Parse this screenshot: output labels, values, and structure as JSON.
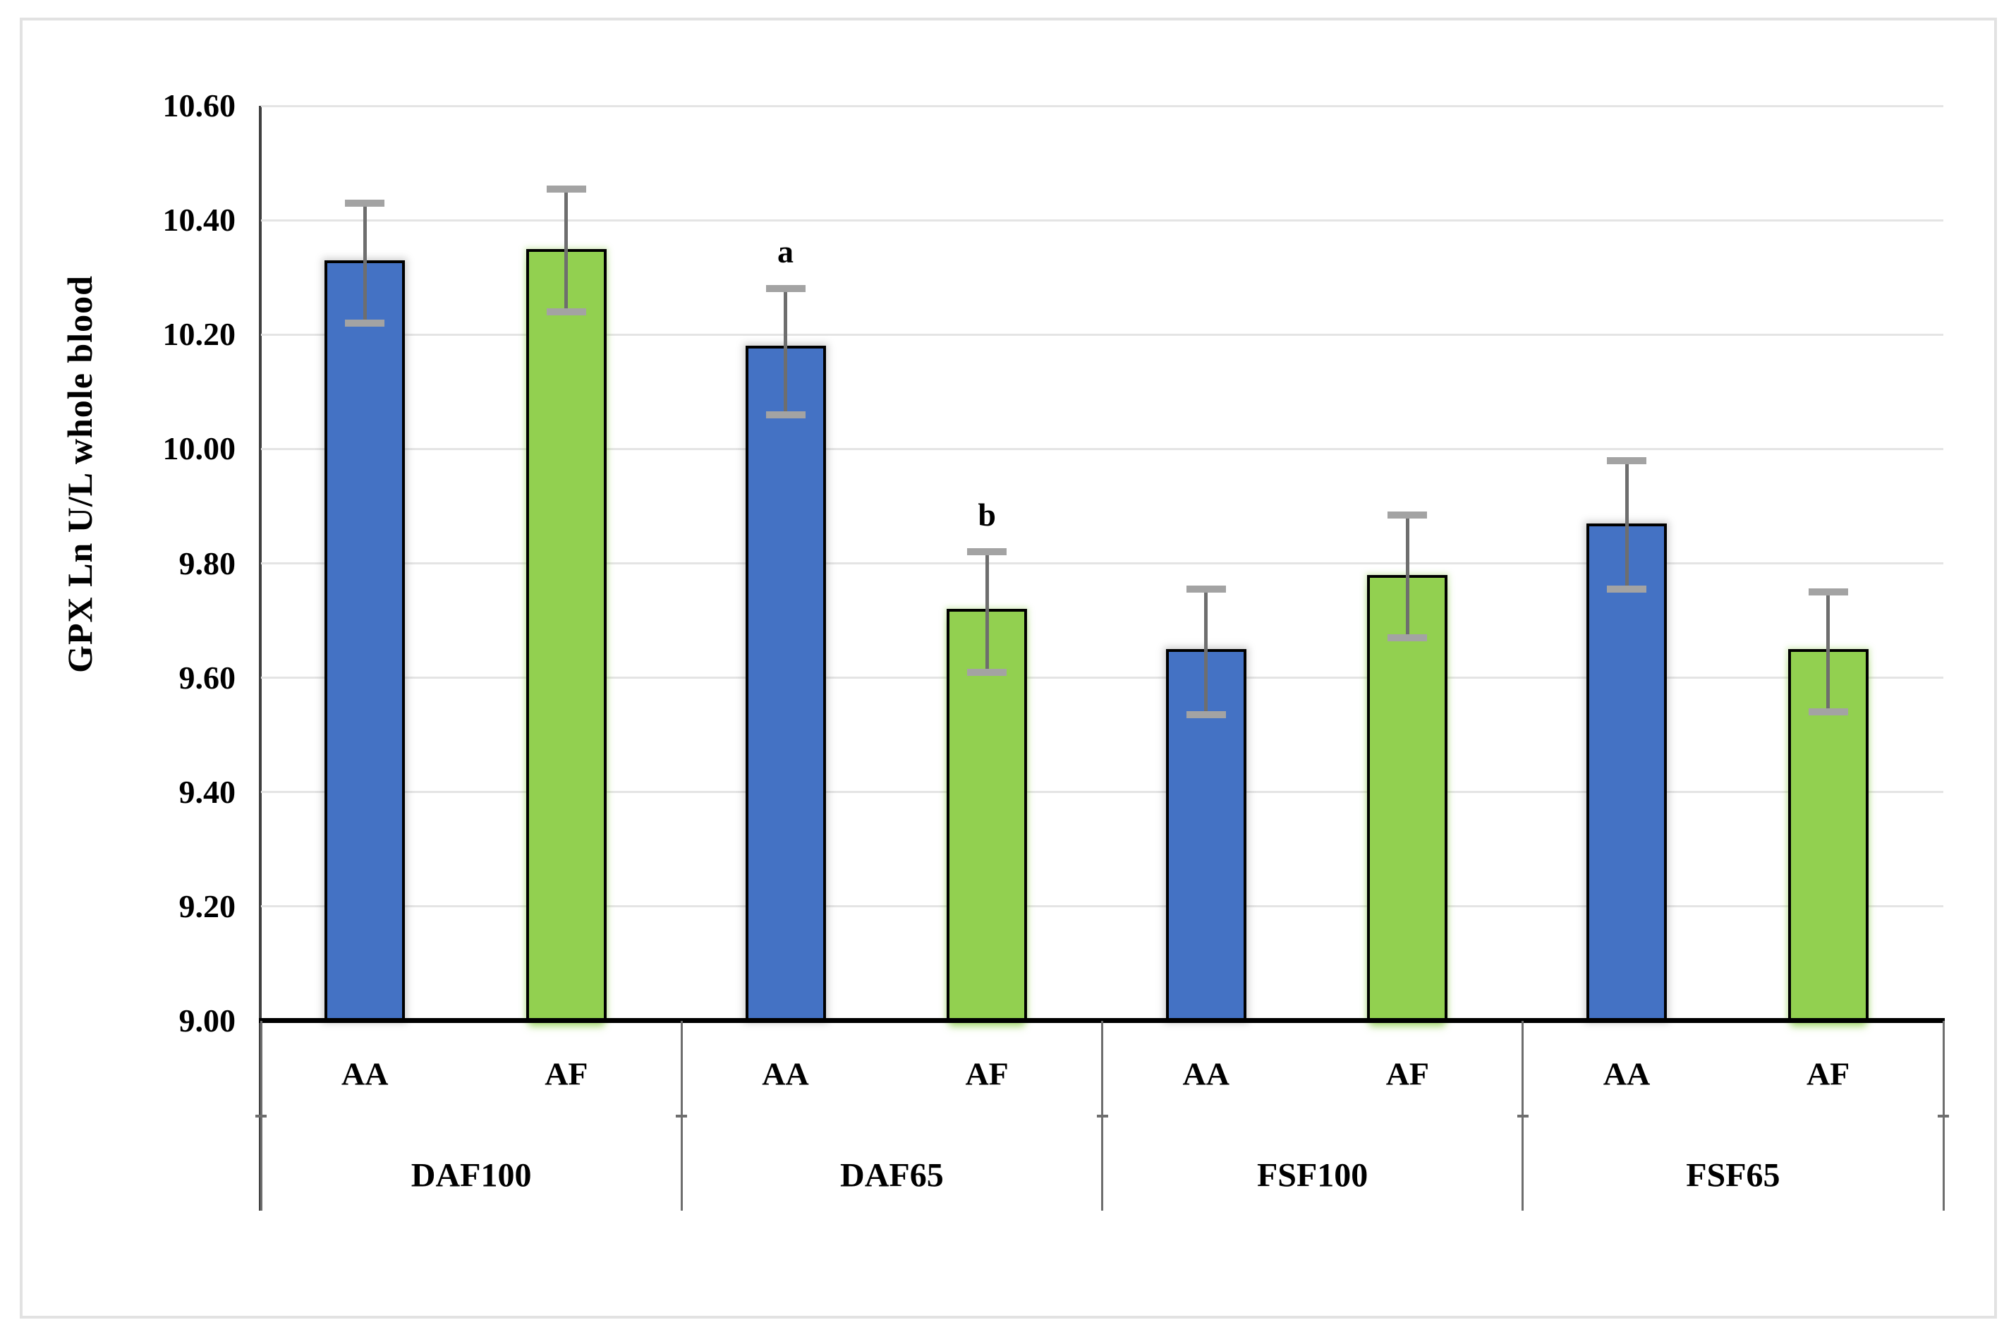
{
  "chart_data": {
    "type": "bar",
    "title": "",
    "xlabel": "",
    "ylabel": "GPX Ln U/L whole blood",
    "y_axis": {
      "min": 9.0,
      "max": 10.6,
      "step": 0.2
    },
    "ylim": [
      9.0,
      10.6
    ],
    "y_ticks": [
      "9.00",
      "9.20",
      "9.40",
      "9.60",
      "9.80",
      "10.00",
      "10.20",
      "10.40",
      "10.60"
    ],
    "grid": "horizontal",
    "legend_position": "none",
    "series": [
      {
        "name": "AA",
        "color": "#4472C4"
      },
      {
        "name": "AF",
        "color": "#92D050"
      }
    ],
    "groups": [
      {
        "label": "DAF100",
        "bars": [
          {
            "genotype": "AA",
            "series": "AA",
            "value": 10.33,
            "err_up": 0.1,
            "err_down": 0.11,
            "annotation": ""
          },
          {
            "genotype": "AF",
            "series": "AF",
            "value": 10.35,
            "err_up": 0.105,
            "err_down": 0.11,
            "annotation": ""
          }
        ]
      },
      {
        "label": "DAF65",
        "bars": [
          {
            "genotype": "AA",
            "series": "AA",
            "value": 10.18,
            "err_up": 0.1,
            "err_down": 0.12,
            "annotation": "a"
          },
          {
            "genotype": "AF",
            "series": "AF",
            "value": 9.72,
            "err_up": 0.1,
            "err_down": 0.11,
            "annotation": "b"
          }
        ]
      },
      {
        "label": "FSF100",
        "bars": [
          {
            "genotype": "AA",
            "series": "AA",
            "value": 9.65,
            "err_up": 0.105,
            "err_down": 0.115,
            "annotation": ""
          },
          {
            "genotype": "AF",
            "series": "AF",
            "value": 9.78,
            "err_up": 0.105,
            "err_down": 0.11,
            "annotation": ""
          }
        ]
      },
      {
        "label": "FSF65",
        "bars": [
          {
            "genotype": "AA",
            "series": "AA",
            "value": 9.87,
            "err_up": 0.11,
            "err_down": 0.115,
            "annotation": ""
          },
          {
            "genotype": "AF",
            "series": "AF",
            "value": 9.65,
            "err_up": 0.1,
            "err_down": 0.11,
            "annotation": ""
          }
        ]
      }
    ],
    "colors": {
      "aa_bar": "#4472C4",
      "af_bar": "#92D050",
      "bar_border": "#000000",
      "gridline": "#E4E4E4",
      "error_bar_stem": "#6E6E6E",
      "error_bar_cap": "#A3A3A3",
      "x_axis": "#000000",
      "y_axis": "#3F3F3F",
      "group_divider": "#6E6E6E",
      "figure_border": "#E2E2E2",
      "text": "#000000"
    }
  }
}
